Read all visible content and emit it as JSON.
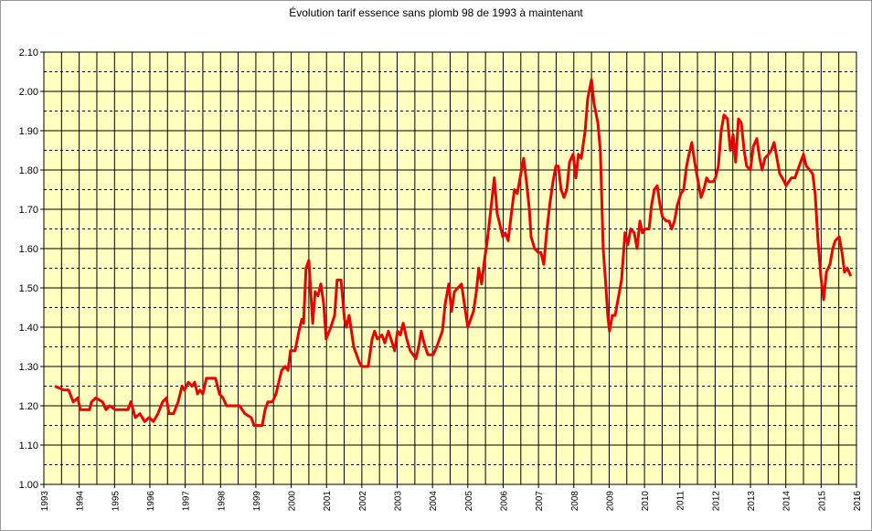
{
  "chart_data": {
    "type": "line",
    "title": "Évolution tarif essence sans plomb 98 de 1993 à maintenant",
    "series": [
      {
        "color": "#e80000",
        "x": [
          1993.31,
          1993.57,
          1993.7,
          1993.83,
          1993.96,
          1994.03,
          1994.29,
          1994.35,
          1994.47,
          1994.66,
          1994.76,
          1994.86,
          1995.02,
          1995.38,
          1995.46,
          1995.59,
          1995.72,
          1995.85,
          1995.98,
          1996.1,
          1996.23,
          1996.36,
          1996.47,
          1996.54,
          1996.67,
          1996.8,
          1996.91,
          1996.98,
          1997.09,
          1997.19,
          1997.27,
          1997.35,
          1997.42,
          1997.5,
          1997.6,
          1997.86,
          1997.97,
          1998.07,
          1998.17,
          1998.54,
          1998.69,
          1998.87,
          1998.95,
          1999.18,
          1999.26,
          1999.34,
          1999.47,
          1999.57,
          1999.73,
          1999.83,
          1999.91,
          1999.98,
          2000.11,
          2000.22,
          2000.3,
          2000.35,
          2000.42,
          2000.5,
          2000.61,
          2000.68,
          2000.76,
          2000.84,
          2000.92,
          2000.99,
          2001.12,
          2001.23,
          2001.3,
          2001.41,
          2001.51,
          2001.56,
          2001.64,
          2001.77,
          2001.93,
          2002.0,
          2002.18,
          2002.29,
          2002.36,
          2002.44,
          2002.57,
          2002.65,
          2002.75,
          2002.86,
          2002.93,
          2003.01,
          2003.09,
          2003.17,
          2003.27,
          2003.37,
          2003.53,
          2003.61,
          2003.68,
          2003.76,
          2003.87,
          2004.02,
          2004.12,
          2004.28,
          2004.36,
          2004.46,
          2004.54,
          2004.62,
          2004.72,
          2004.82,
          2004.9,
          2005.0,
          2005.08,
          2005.16,
          2005.24,
          2005.31,
          2005.39,
          2005.47,
          2005.55,
          2005.65,
          2005.75,
          2005.83,
          2005.91,
          2005.99,
          2006.06,
          2006.14,
          2006.22,
          2006.32,
          2006.4,
          2006.48,
          2006.58,
          2006.66,
          2006.74,
          2006.79,
          2006.89,
          2007.0,
          2007.07,
          2007.15,
          2007.23,
          2007.33,
          2007.41,
          2007.49,
          2007.56,
          2007.64,
          2007.72,
          2007.8,
          2007.88,
          2007.98,
          2008.06,
          2008.13,
          2008.21,
          2008.32,
          2008.39,
          2008.5,
          2008.57,
          2008.68,
          2008.75,
          2008.83,
          2008.91,
          2008.96,
          2009.01,
          2009.09,
          2009.17,
          2009.25,
          2009.35,
          2009.45,
          2009.53,
          2009.61,
          2009.71,
          2009.79,
          2009.87,
          2009.94,
          2010.02,
          2010.13,
          2010.2,
          2010.28,
          2010.36,
          2010.44,
          2010.51,
          2010.62,
          2010.7,
          2010.77,
          2010.85,
          2010.93,
          2011.03,
          2011.11,
          2011.19,
          2011.26,
          2011.34,
          2011.42,
          2011.52,
          2011.6,
          2011.68,
          2011.76,
          2011.83,
          2011.94,
          2012.01,
          2012.09,
          2012.17,
          2012.25,
          2012.35,
          2012.43,
          2012.51,
          2012.58,
          2012.66,
          2012.74,
          2012.82,
          2012.89,
          2013.0,
          2013.08,
          2013.18,
          2013.26,
          2013.33,
          2013.41,
          2013.51,
          2013.59,
          2013.67,
          2013.75,
          2013.83,
          2013.9,
          2014.01,
          2014.08,
          2014.16,
          2014.26,
          2014.34,
          2014.42,
          2014.5,
          2014.58,
          2014.68,
          2014.76,
          2014.83,
          2014.91,
          2014.99,
          2015.07,
          2015.15,
          2015.25,
          2015.33,
          2015.4,
          2015.51,
          2015.59,
          2015.66,
          2015.74,
          2015.84
        ],
        "values": [
          1.25,
          1.24,
          1.24,
          1.21,
          1.22,
          1.19,
          1.19,
          1.21,
          1.22,
          1.21,
          1.19,
          1.2,
          1.19,
          1.19,
          1.21,
          1.17,
          1.18,
          1.16,
          1.17,
          1.16,
          1.18,
          1.21,
          1.22,
          1.18,
          1.18,
          1.21,
          1.25,
          1.24,
          1.26,
          1.25,
          1.26,
          1.23,
          1.24,
          1.23,
          1.27,
          1.27,
          1.23,
          1.22,
          1.2,
          1.2,
          1.18,
          1.17,
          1.15,
          1.15,
          1.19,
          1.21,
          1.21,
          1.23,
          1.29,
          1.3,
          1.29,
          1.34,
          1.34,
          1.39,
          1.42,
          1.41,
          1.55,
          1.57,
          1.41,
          1.49,
          1.48,
          1.51,
          1.46,
          1.37,
          1.4,
          1.43,
          1.52,
          1.52,
          1.42,
          1.4,
          1.43,
          1.35,
          1.31,
          1.3,
          1.3,
          1.37,
          1.39,
          1.37,
          1.38,
          1.36,
          1.39,
          1.36,
          1.34,
          1.39,
          1.38,
          1.41,
          1.37,
          1.34,
          1.32,
          1.35,
          1.39,
          1.36,
          1.33,
          1.33,
          1.35,
          1.39,
          1.46,
          1.51,
          1.44,
          1.49,
          1.5,
          1.51,
          1.46,
          1.4,
          1.42,
          1.44,
          1.49,
          1.55,
          1.51,
          1.57,
          1.62,
          1.7,
          1.78,
          1.69,
          1.66,
          1.63,
          1.64,
          1.62,
          1.68,
          1.75,
          1.74,
          1.78,
          1.83,
          1.77,
          1.7,
          1.63,
          1.6,
          1.59,
          1.59,
          1.56,
          1.64,
          1.72,
          1.77,
          1.81,
          1.81,
          1.75,
          1.73,
          1.75,
          1.82,
          1.84,
          1.78,
          1.84,
          1.83,
          1.9,
          1.98,
          2.03,
          1.97,
          1.92,
          1.85,
          1.6,
          1.5,
          1.43,
          1.39,
          1.43,
          1.43,
          1.47,
          1.52,
          1.64,
          1.61,
          1.65,
          1.64,
          1.6,
          1.67,
          1.64,
          1.65,
          1.65,
          1.71,
          1.75,
          1.76,
          1.71,
          1.68,
          1.67,
          1.67,
          1.65,
          1.67,
          1.71,
          1.74,
          1.75,
          1.81,
          1.84,
          1.87,
          1.82,
          1.77,
          1.73,
          1.75,
          1.78,
          1.77,
          1.77,
          1.78,
          1.81,
          1.9,
          1.94,
          1.93,
          1.85,
          1.89,
          1.82,
          1.93,
          1.92,
          1.85,
          1.81,
          1.8,
          1.86,
          1.88,
          1.83,
          1.8,
          1.83,
          1.84,
          1.85,
          1.87,
          1.83,
          1.79,
          1.78,
          1.76,
          1.77,
          1.78,
          1.78,
          1.8,
          1.82,
          1.84,
          1.81,
          1.8,
          1.79,
          1.74,
          1.62,
          1.53,
          1.47,
          1.54,
          1.56,
          1.6,
          1.62,
          1.63,
          1.59,
          1.54,
          1.55,
          1.53
        ]
      }
    ],
    "xlim": [
      1993,
      2016
    ],
    "xticks": [
      1993,
      1994,
      1995,
      1996,
      1997,
      1998,
      1999,
      2000,
      2001,
      2002,
      2003,
      2004,
      2005,
      2006,
      2007,
      2008,
      2009,
      2010,
      2011,
      2012,
      2013,
      2014,
      2015,
      2016
    ],
    "ylim": [
      1,
      2.1
    ],
    "yticks": [
      {
        "value": 1,
        "label": "1.00"
      },
      {
        "value": 1.1,
        "label": "1.10"
      },
      {
        "value": 1.2,
        "label": "1.20"
      },
      {
        "value": 1.3,
        "label": "1.30"
      },
      {
        "value": 1.4,
        "label": "1.40"
      },
      {
        "value": 1.5,
        "label": "1.50"
      },
      {
        "value": 1.6,
        "label": "1.60"
      },
      {
        "value": 1.7,
        "label": "1.70"
      },
      {
        "value": 1.8,
        "label": "1.80"
      },
      {
        "value": 1.9,
        "label": "1.90"
      },
      {
        "value": 2,
        "label": "2.00"
      },
      {
        "value": 2.1,
        "label": "2.10"
      }
    ],
    "grid": true
  }
}
